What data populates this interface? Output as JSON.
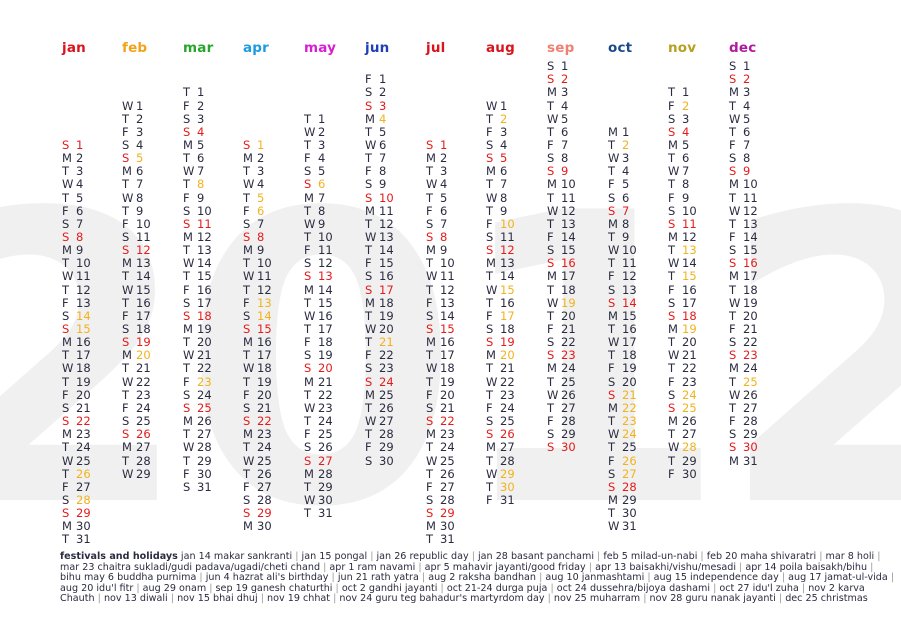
{
  "year": "2012",
  "colors": {
    "sunday": "#e41b1b",
    "holiday": "#f2b21c",
    "text": "#2b2b40",
    "watermark": "#f0f0f0"
  },
  "months": [
    {
      "key": "jan",
      "label": "jan",
      "color": "#d9141c",
      "first_weekday": 0,
      "days": 31,
      "holidays": [
        14,
        15,
        26,
        28
      ]
    },
    {
      "key": "feb",
      "label": "feb",
      "color": "#f2a31b",
      "first_weekday": 3,
      "days": 29,
      "holidays": [
        5,
        20
      ]
    },
    {
      "key": "mar",
      "label": "mar",
      "color": "#27a52c",
      "first_weekday": 4,
      "days": 31,
      "holidays": [
        8,
        23
      ]
    },
    {
      "key": "apr",
      "label": "apr",
      "color": "#1c9be0",
      "first_weekday": 0,
      "days": 30,
      "holidays": [
        1,
        5,
        6,
        13,
        14
      ]
    },
    {
      "key": "may",
      "label": "may",
      "color": "#d61fd3",
      "first_weekday": 2,
      "days": 31,
      "holidays": [
        6
      ]
    },
    {
      "key": "jun",
      "label": "jun",
      "color": "#2040b8",
      "first_weekday": 5,
      "days": 30,
      "holidays": [
        4,
        21
      ]
    },
    {
      "key": "jul",
      "label": "jul",
      "color": "#d9141c",
      "first_weekday": 0,
      "days": 31,
      "holidays": []
    },
    {
      "key": "aug",
      "label": "aug",
      "color": "#d9141c",
      "first_weekday": 3,
      "days": 31,
      "holidays": [
        2,
        10,
        15,
        17,
        20,
        29,
        30
      ]
    },
    {
      "key": "sep",
      "label": "sep",
      "color": "#f08070",
      "first_weekday": 6,
      "days": 30,
      "holidays": [
        19
      ]
    },
    {
      "key": "oct",
      "label": "oct",
      "color": "#1a4a8a",
      "first_weekday": 1,
      "days": 31,
      "holidays": [
        2,
        21,
        22,
        23,
        24,
        26,
        27
      ]
    },
    {
      "key": "nov",
      "label": "nov",
      "color": "#b8a020",
      "first_weekday": 4,
      "days": 30,
      "holidays": [
        2,
        13,
        15,
        19,
        24,
        25,
        28
      ]
    },
    {
      "key": "dec",
      "label": "dec",
      "color": "#b01aa0",
      "first_weekday": 6,
      "days": 31,
      "holidays": [
        25
      ]
    }
  ],
  "weekday_letters": [
    "S",
    "M",
    "T",
    "W",
    "T",
    "F",
    "S"
  ],
  "footer": {
    "label": "festivals and holidays",
    "items": [
      "jan 14 makar sankranti",
      "jan 15 pongal",
      "jan 26 republic day",
      "jan 28 basant panchami",
      "feb 5 milad-un-nabi",
      "feb 20 maha shivaratri",
      "mar 8 holi",
      "mar 23 chaitra sukladi/gudi padava/ugadi/cheti chand",
      "apr 1 ram navami",
      "apr 5 mahavir jayanti/good friday",
      "apr 13 baisakhi/vishu/mesadi",
      "apr 14 poila baisakh/bihu",
      "bihu may 6 buddha purnima",
      "jun 4 hazrat ali's birthday",
      "jun 21 rath yatra",
      "aug 2 raksha bandhan",
      "aug 10 janmashtami",
      "aug 15 independence day",
      "aug 17 jamat-ul-vida",
      "aug 20 idu'l fitr",
      "aug 29 onam",
      "sep 19 ganesh chaturthi",
      "oct 2 gandhi jayanti",
      "oct 21-24 durga puja",
      "oct 24 dussehra/bijoya dashami",
      "oct 27 idu'l zuha",
      "nov 2 karva Chauth",
      "nov 13 diwali",
      "nov 15 bhai dhuj",
      "nov 19 chhat",
      "nov 24 guru teg bahadur's martyrdom day",
      "nov 25 muharram",
      "nov 28 guru nanak jayanti",
      "dec 25 christmas"
    ]
  }
}
